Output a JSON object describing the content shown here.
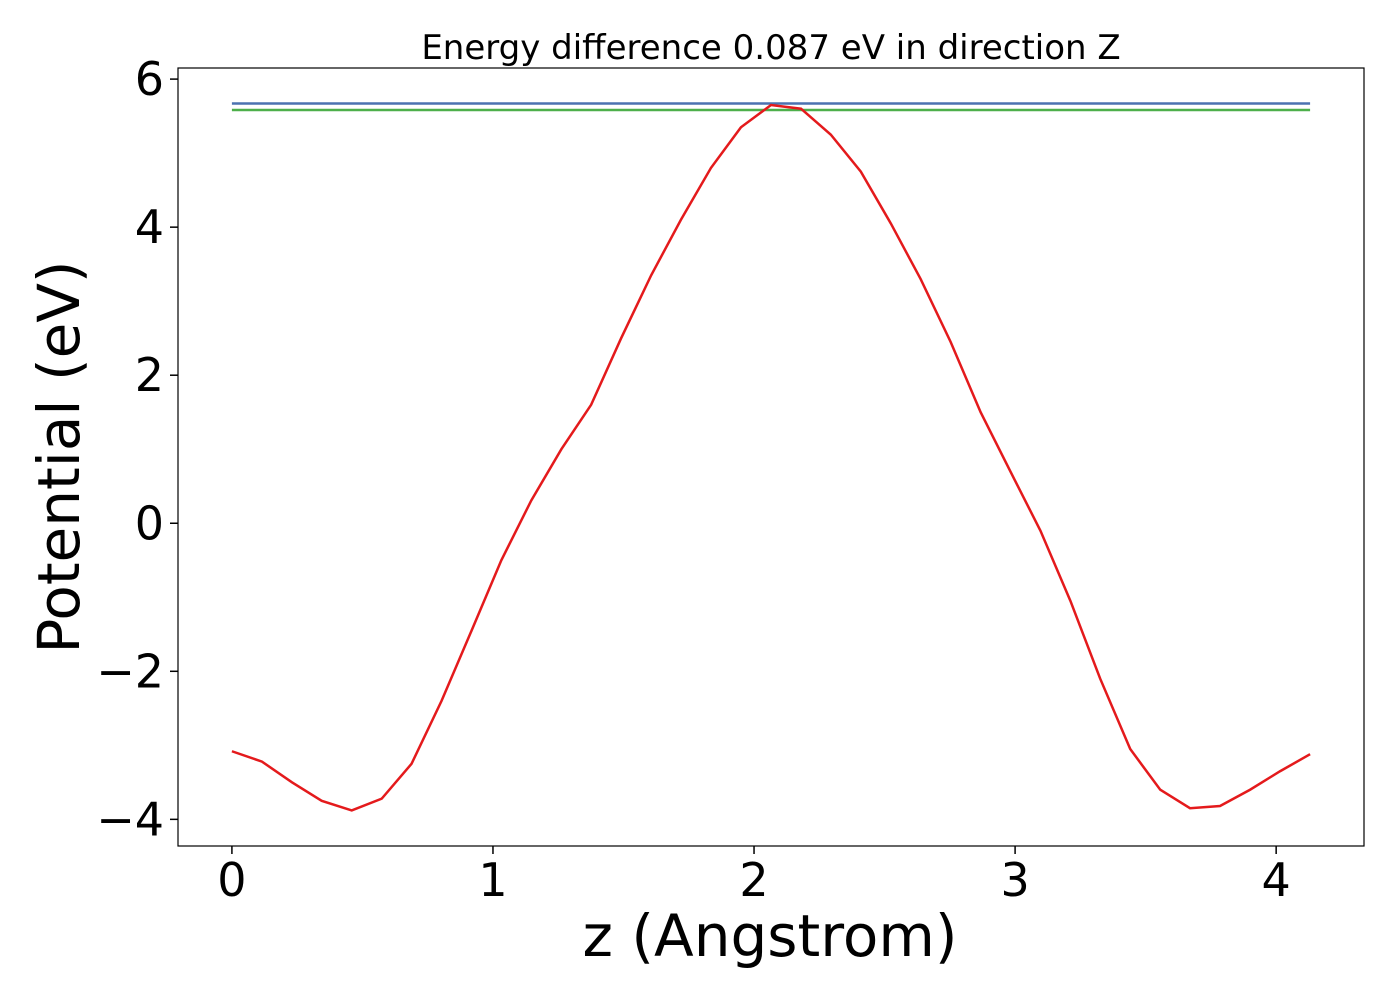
{
  "chart_data": {
    "type": "line",
    "title": "Energy difference 0.087 eV in direction Z",
    "x_label": "z (Angstrom)",
    "y_label": "Potential (eV)",
    "xlim": [
      -0.2065,
      4.3365
    ],
    "ylim": [
      -4.36,
      6.15
    ],
    "xticks": [
      0,
      1,
      2,
      3,
      4
    ],
    "yticks": [
      {
        "value": -4,
        "label": "−4"
      },
      {
        "value": -2,
        "label": "−2"
      },
      0,
      2,
      4,
      6
    ],
    "grid": false,
    "series": [
      {
        "color": "#4c72b0",
        "x": [
          0,
          4.13
        ],
        "values": [
          5.67,
          5.67
        ]
      },
      {
        "color": "#4daf4a",
        "x": [
          0,
          4.13
        ],
        "values": [
          5.583,
          5.583
        ]
      },
      {
        "color": "#e41a1c",
        "x": [
          0,
          0.115,
          0.23,
          0.344,
          0.459,
          0.574,
          0.688,
          0.803,
          0.918,
          1.032,
          1.147,
          1.262,
          1.376,
          1.491,
          1.606,
          1.72,
          1.835,
          1.95,
          2.065,
          2.18,
          2.294,
          2.409,
          2.524,
          2.638,
          2.753,
          2.868,
          2.982,
          3.097,
          3.212,
          3.326,
          3.441,
          3.556,
          3.67,
          3.785,
          3.9,
          4.015,
          4.13
        ],
        "values": [
          -3.08,
          -3.22,
          -3.5,
          -3.75,
          -3.88,
          -3.72,
          -3.25,
          -2.4,
          -1.45,
          -0.5,
          0.31,
          1.0,
          1.6,
          2.5,
          3.35,
          4.1,
          4.8,
          5.35,
          5.65,
          5.6,
          5.25,
          4.75,
          4.05,
          3.3,
          2.45,
          1.5,
          0.7,
          -0.1,
          -1.05,
          -2.1,
          -3.05,
          -3.6,
          -3.85,
          -3.82,
          -3.6,
          -3.35,
          -3.12
        ]
      }
    ]
  }
}
